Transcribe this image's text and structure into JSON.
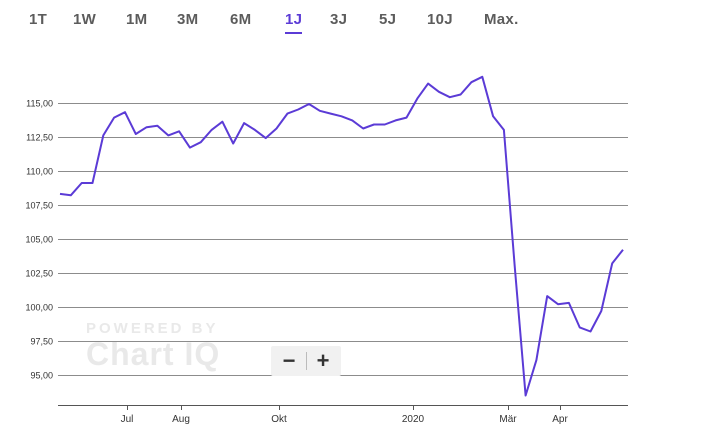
{
  "range_tabs": [
    {
      "label": "1T"
    },
    {
      "label": "1W"
    },
    {
      "label": "1M"
    },
    {
      "label": "3M"
    },
    {
      "label": "6M"
    },
    {
      "label": "1J"
    },
    {
      "label": "3J"
    },
    {
      "label": "5J"
    },
    {
      "label": "10J"
    },
    {
      "label": "Max."
    }
  ],
  "active_tab": "1J",
  "zoom": {
    "minus": "−",
    "plus": "+"
  },
  "watermark": {
    "top": "POWERED BY",
    "bottom": "Chart IQ"
  },
  "colors": {
    "line": "#5b3bd6",
    "active_tab": "#5b3bd6",
    "grid": "#8c8c8c"
  },
  "chart_data": {
    "type": "line",
    "title": "",
    "xlabel": "",
    "ylabel": "",
    "ylim": [
      92.8,
      118.5
    ],
    "y_ticks": [
      "115,00",
      "112,50",
      "110,00",
      "107,50",
      "105,00",
      "102,50",
      "100,00",
      "97,50",
      "95,00"
    ],
    "x_ticks": [
      "Jul",
      "Aug",
      "Okt",
      "2020",
      "Mär",
      "Apr"
    ],
    "grid": true,
    "series": [
      {
        "values": [
          108.3,
          108.2,
          109.1,
          109.1,
          112.6,
          113.9,
          114.3,
          112.7,
          113.2,
          113.3,
          112.6,
          112.9,
          111.7,
          112.1,
          113.0,
          113.6,
          112.0,
          113.5,
          113.0,
          112.4,
          113.1,
          114.2,
          114.5,
          114.9,
          114.4,
          114.2,
          114.0,
          113.7,
          113.1,
          113.4,
          113.4,
          113.7,
          113.9,
          115.3,
          116.4,
          115.8,
          115.4,
          115.6,
          116.5,
          116.9,
          114.0,
          113.0,
          103.0,
          93.5,
          96.1,
          100.8,
          100.2,
          100.3,
          98.5,
          98.2,
          99.7,
          103.2,
          104.2
        ]
      }
    ]
  }
}
